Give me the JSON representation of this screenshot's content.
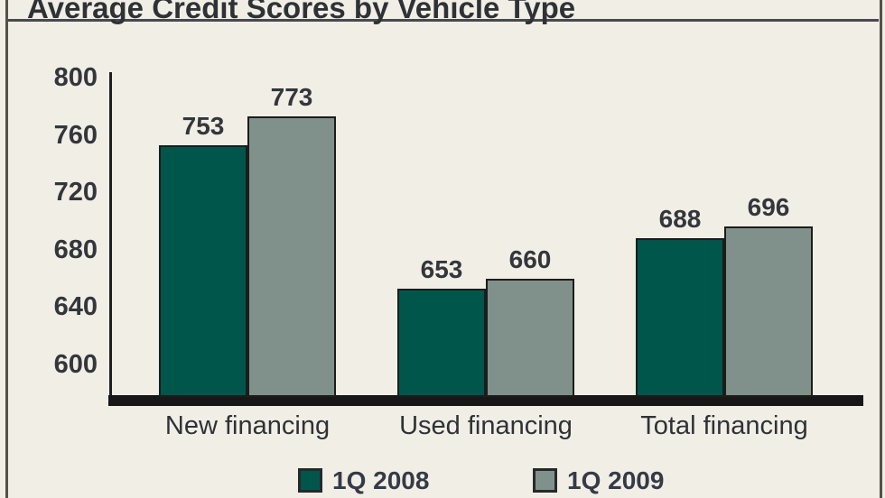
{
  "title": "Average Credit Scores by Vehicle Type",
  "chart_data": {
    "type": "bar",
    "title": "Average Credit Scores by Vehicle Type",
    "categories": [
      "New financing",
      "Used financing",
      "Total financing"
    ],
    "series": [
      {
        "name": "1Q 2008",
        "color": "#00564a",
        "values": [
          753,
          653,
          688
        ]
      },
      {
        "name": "1Q 2009",
        "color": "#7f918a",
        "values": [
          773,
          660,
          696
        ]
      }
    ],
    "y_ticks": [
      800,
      760,
      720,
      680,
      640,
      600
    ],
    "ylim": [
      575,
      800
    ],
    "xlabel": "",
    "ylabel": "",
    "grid": false,
    "bar_value_labels_shown": true,
    "legend_position": "bottom"
  },
  "style": {
    "background_color": "#f1eee6",
    "bar_outline_color": "#1c1c1c",
    "axis_color": "#1f1f1f",
    "baseline_color": "#171717",
    "text_color": "#2e3236",
    "legend_text_color": "#343b47",
    "series_colors": {
      "1q2008": "#00564a",
      "1q2009": "#7f918a"
    }
  }
}
